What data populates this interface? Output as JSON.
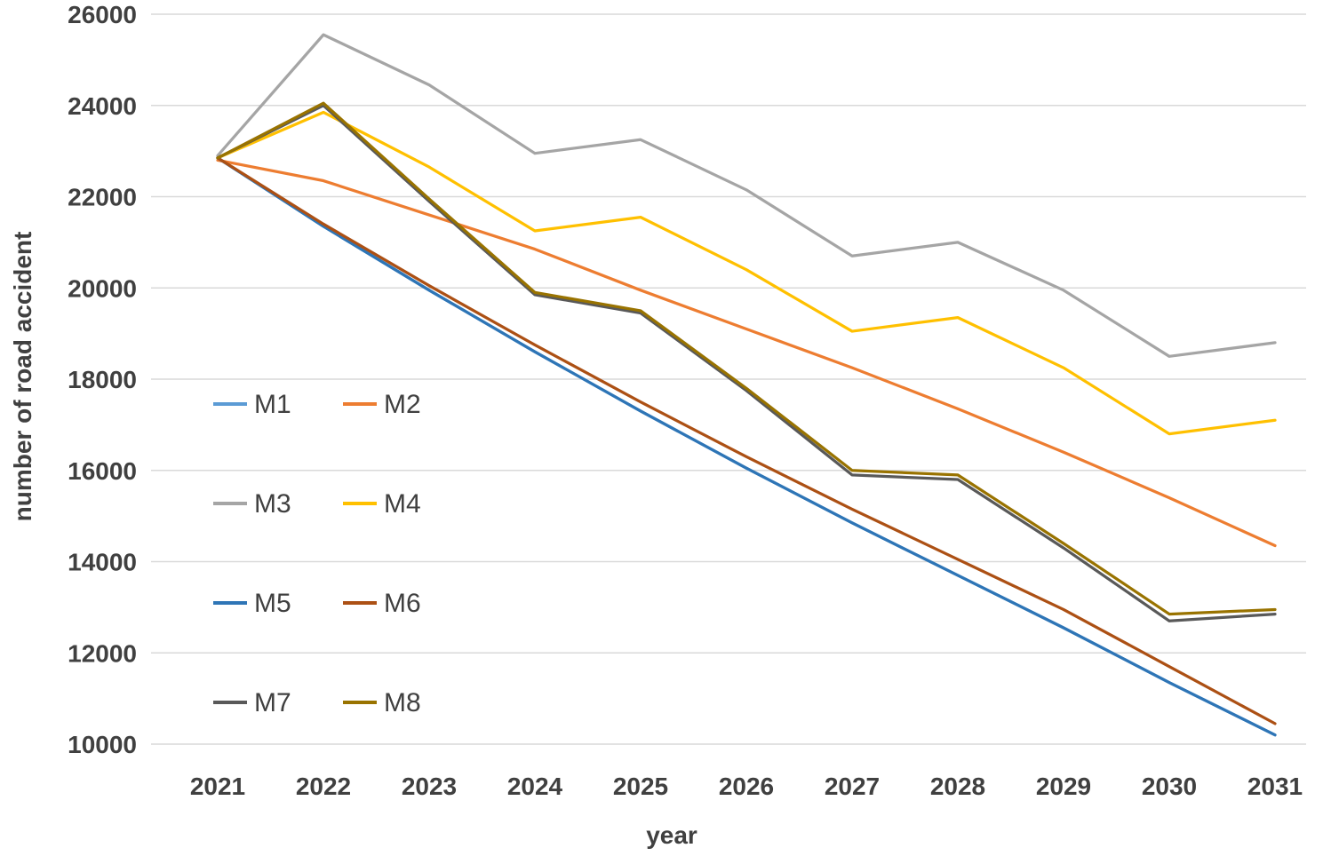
{
  "chart_data": {
    "type": "line",
    "title": "",
    "xlabel": "year",
    "ylabel": "number of road accident",
    "categories": [
      "2021",
      "2022",
      "2023",
      "2024",
      "2025",
      "2026",
      "2027",
      "2028",
      "2029",
      "2030",
      "2031"
    ],
    "ylim": [
      10000,
      26000
    ],
    "ytick_step": 2000,
    "yticks": [
      10000,
      12000,
      14000,
      16000,
      18000,
      20000,
      22000,
      24000,
      26000
    ],
    "grid": true,
    "legend_position": "inside-left",
    "legend_rows": [
      [
        "M1",
        "M2"
      ],
      [
        "M3",
        "M4"
      ],
      [
        "M5",
        "M6"
      ],
      [
        "M7",
        "M8"
      ]
    ],
    "series": [
      {
        "name": "M1",
        "color": "#5B9BD5",
        "values": [
          22850,
          21350,
          19950,
          18600,
          17300,
          16050,
          14850,
          13700,
          12550,
          11350,
          10200
        ]
      },
      {
        "name": "M2",
        "color": "#ED7D31",
        "values": [
          22800,
          22350,
          21600,
          20850,
          19950,
          19100,
          18250,
          17350,
          16400,
          15400,
          14350
        ]
      },
      {
        "name": "M3",
        "color": "#A5A5A5",
        "values": [
          22900,
          25550,
          24450,
          22950,
          23250,
          22150,
          20700,
          21000,
          19950,
          18500,
          18800
        ]
      },
      {
        "name": "M4",
        "color": "#FFC000",
        "values": [
          22850,
          23850,
          22650,
          21250,
          21550,
          20400,
          19050,
          19350,
          18250,
          16800,
          17100
        ]
      },
      {
        "name": "M5",
        "color": "#2E75B6",
        "values": [
          22850,
          21350,
          19950,
          18600,
          17300,
          16050,
          14850,
          13700,
          12550,
          11350,
          10200
        ]
      },
      {
        "name": "M6",
        "color": "#AC5014",
        "values": [
          22850,
          21400,
          20050,
          18750,
          17500,
          16300,
          15150,
          14050,
          12950,
          11700,
          10450
        ]
      },
      {
        "name": "M7",
        "color": "#595959",
        "values": [
          22850,
          24000,
          21900,
          19850,
          19450,
          17750,
          15900,
          15800,
          14300,
          12700,
          12850
        ]
      },
      {
        "name": "M8",
        "color": "#997300",
        "values": [
          22850,
          24050,
          21950,
          19900,
          19500,
          17800,
          16000,
          15900,
          14400,
          12850,
          12950
        ]
      }
    ]
  },
  "style": {
    "grid_color": "#D9D9D9",
    "text_color": "#404040",
    "background": "#FFFFFF"
  }
}
